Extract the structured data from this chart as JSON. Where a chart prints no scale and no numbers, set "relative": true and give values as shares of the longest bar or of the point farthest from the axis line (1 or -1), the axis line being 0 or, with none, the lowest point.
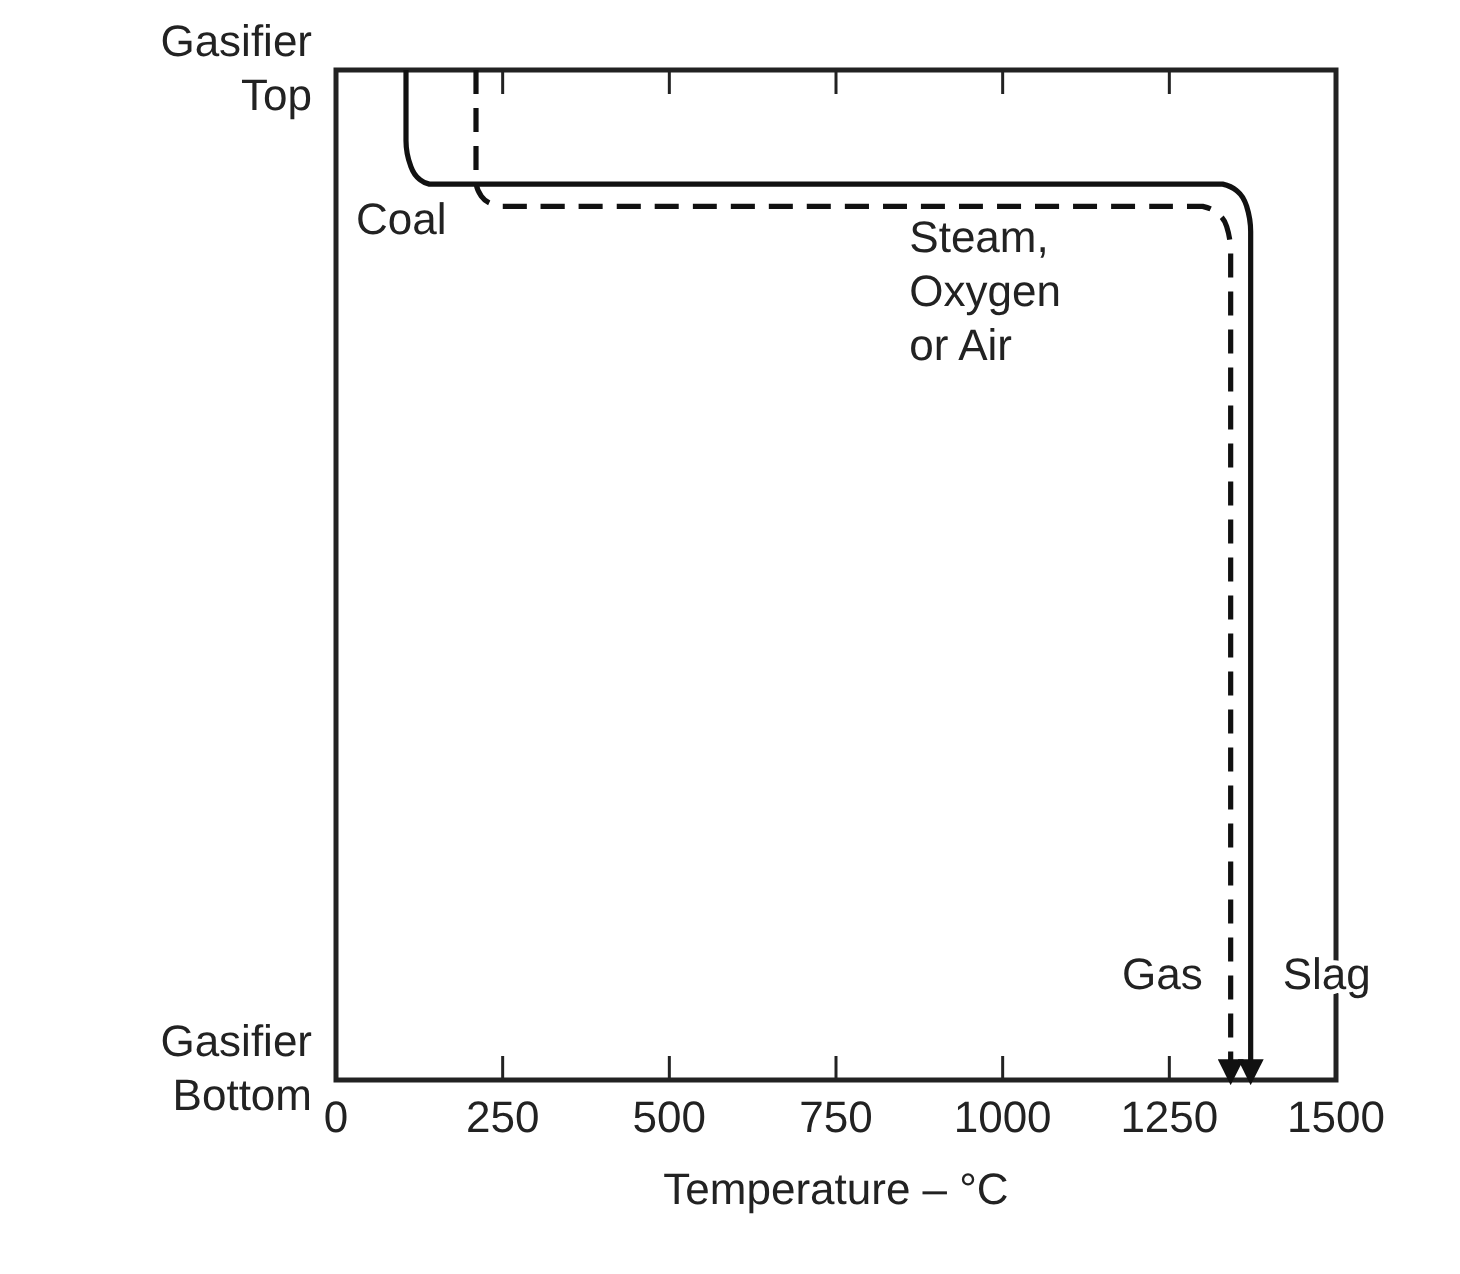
{
  "chart_data": {
    "type": "line",
    "relative": true,
    "xlabel": "Temperature – °C",
    "xlim": [
      0,
      1500
    ],
    "xticks": [
      0,
      250,
      500,
      750,
      1000,
      1250,
      1500
    ],
    "grid": false,
    "series": [
      {
        "color": "#111111",
        "line_style": "solid",
        "x": [
          105,
          105,
          112,
          125,
          140,
          1330,
          1352,
          1366,
          1372,
          1372
        ],
        "values": [
          1,
          0.93,
          0.905,
          0.892,
          0.887,
          0.887,
          0.88,
          0.865,
          0.84,
          0
        ]
      },
      {
        "color": "#111111",
        "line_style": "dashed",
        "x": [
          210,
          210,
          218,
          235,
          250,
          1300,
          1322,
          1336,
          1342,
          1342
        ],
        "values": [
          1,
          0.89,
          0.875,
          0.867,
          0.865,
          0.865,
          0.858,
          0.845,
          0.82,
          0
        ]
      }
    ],
    "annotations": [
      "Gasifier Top",
      "Gasifier Bottom",
      "Coal",
      "Steam, Oxygen or Air",
      {
        "text": "Gas",
        "x": 1342,
        "y": 0.09
      },
      {
        "text": "Slag",
        "x": 1372,
        "y": 0.09
      }
    ]
  }
}
